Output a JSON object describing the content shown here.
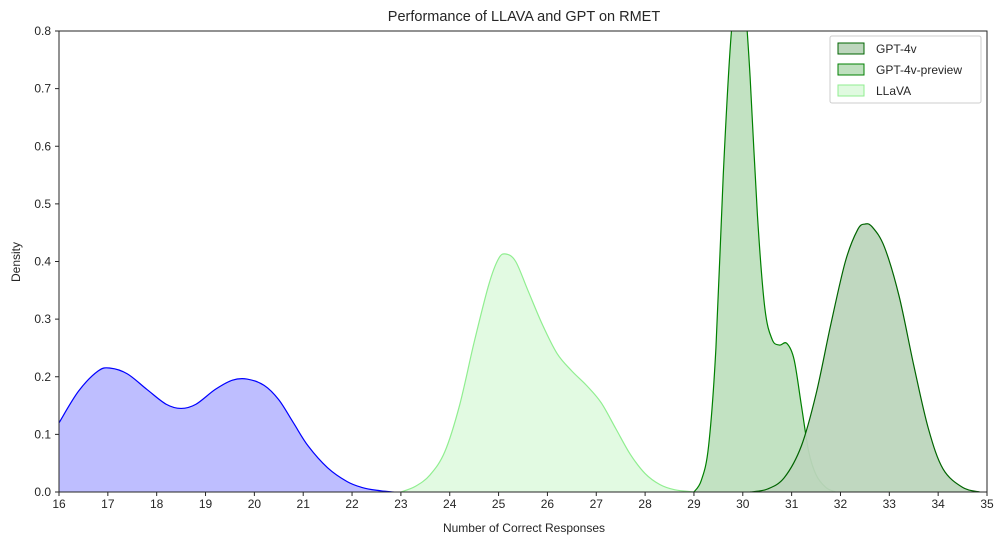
{
  "chart_data": {
    "type": "area",
    "subtype": "kde",
    "title": "Performance of LLAVA and GPT on RMET",
    "xlabel": "Number of Correct Responses",
    "ylabel": "Density",
    "xlim": [
      16,
      35
    ],
    "ylim": [
      0,
      0.8
    ],
    "xticks": [
      "16",
      "17",
      "18",
      "19",
      "20",
      "21",
      "22",
      "23",
      "24",
      "25",
      "26",
      "27",
      "28",
      "29",
      "30",
      "31",
      "32",
      "33",
      "34",
      "35"
    ],
    "yticks": [
      "0.0",
      "0.1",
      "0.2",
      "0.3",
      "0.4",
      "0.5",
      "0.6",
      "0.7",
      "0.8"
    ],
    "grid": false,
    "legend_position": "top-right",
    "legend": [
      {
        "label": "GPT-4v",
        "fill": "#bdd6bd",
        "stroke": "#006400"
      },
      {
        "label": "GPT-4v-preview",
        "fill": "#bfe0bf",
        "stroke": "#008000"
      },
      {
        "label": "LLaVA",
        "fill": "#e0fae0",
        "stroke": "#90ee90"
      }
    ],
    "series": [
      {
        "fill": "#bbbbff",
        "stroke": "#0000ff",
        "x": [
          16.0,
          16.4,
          16.8,
          17.05,
          17.4,
          17.8,
          18.2,
          18.5,
          18.8,
          19.2,
          19.55,
          19.85,
          20.2,
          20.5,
          20.8,
          21.1,
          21.5,
          21.9,
          22.2,
          22.5,
          22.85
        ],
        "y": [
          0.12,
          0.175,
          0.21,
          0.215,
          0.205,
          0.178,
          0.152,
          0.145,
          0.152,
          0.178,
          0.194,
          0.196,
          0.185,
          0.16,
          0.12,
          0.08,
          0.042,
          0.018,
          0.008,
          0.003,
          0.0
        ]
      },
      {
        "fill": "#e0fae0",
        "stroke": "#90ee90",
        "x": [
          23.0,
          23.3,
          23.6,
          23.9,
          24.2,
          24.5,
          24.8,
          25.0,
          25.15,
          25.35,
          25.6,
          25.9,
          26.2,
          26.5,
          26.8,
          27.1,
          27.4,
          27.7,
          28.0,
          28.3,
          28.6,
          29.0
        ],
        "y": [
          0.0,
          0.01,
          0.03,
          0.07,
          0.15,
          0.26,
          0.36,
          0.405,
          0.413,
          0.4,
          0.35,
          0.29,
          0.24,
          0.21,
          0.185,
          0.155,
          0.11,
          0.065,
          0.032,
          0.013,
          0.004,
          0.0
        ]
      },
      {
        "fill": "#bfe0bf",
        "stroke": "#008000",
        "x": [
          29.0,
          29.15,
          29.3,
          29.45,
          29.6,
          29.75,
          29.85,
          29.95,
          30.05,
          30.15,
          30.3,
          30.45,
          30.6,
          30.75,
          30.9,
          31.05,
          31.2,
          31.35,
          31.5,
          31.7,
          31.9
        ],
        "y": [
          0.0,
          0.02,
          0.08,
          0.25,
          0.55,
          0.78,
          0.85,
          0.87,
          0.84,
          0.72,
          0.48,
          0.32,
          0.265,
          0.255,
          0.258,
          0.23,
          0.15,
          0.07,
          0.03,
          0.008,
          0.0
        ]
      },
      {
        "fill": "#bdd6bd",
        "stroke": "#006400",
        "x": [
          30.15,
          30.5,
          30.85,
          31.2,
          31.5,
          31.8,
          32.1,
          32.35,
          32.5,
          32.65,
          32.9,
          33.2,
          33.5,
          33.8,
          34.1,
          34.5,
          34.85
        ],
        "y": [
          0.0,
          0.005,
          0.025,
          0.08,
          0.17,
          0.29,
          0.4,
          0.455,
          0.465,
          0.46,
          0.425,
          0.34,
          0.22,
          0.11,
          0.04,
          0.008,
          0.0
        ]
      }
    ]
  }
}
